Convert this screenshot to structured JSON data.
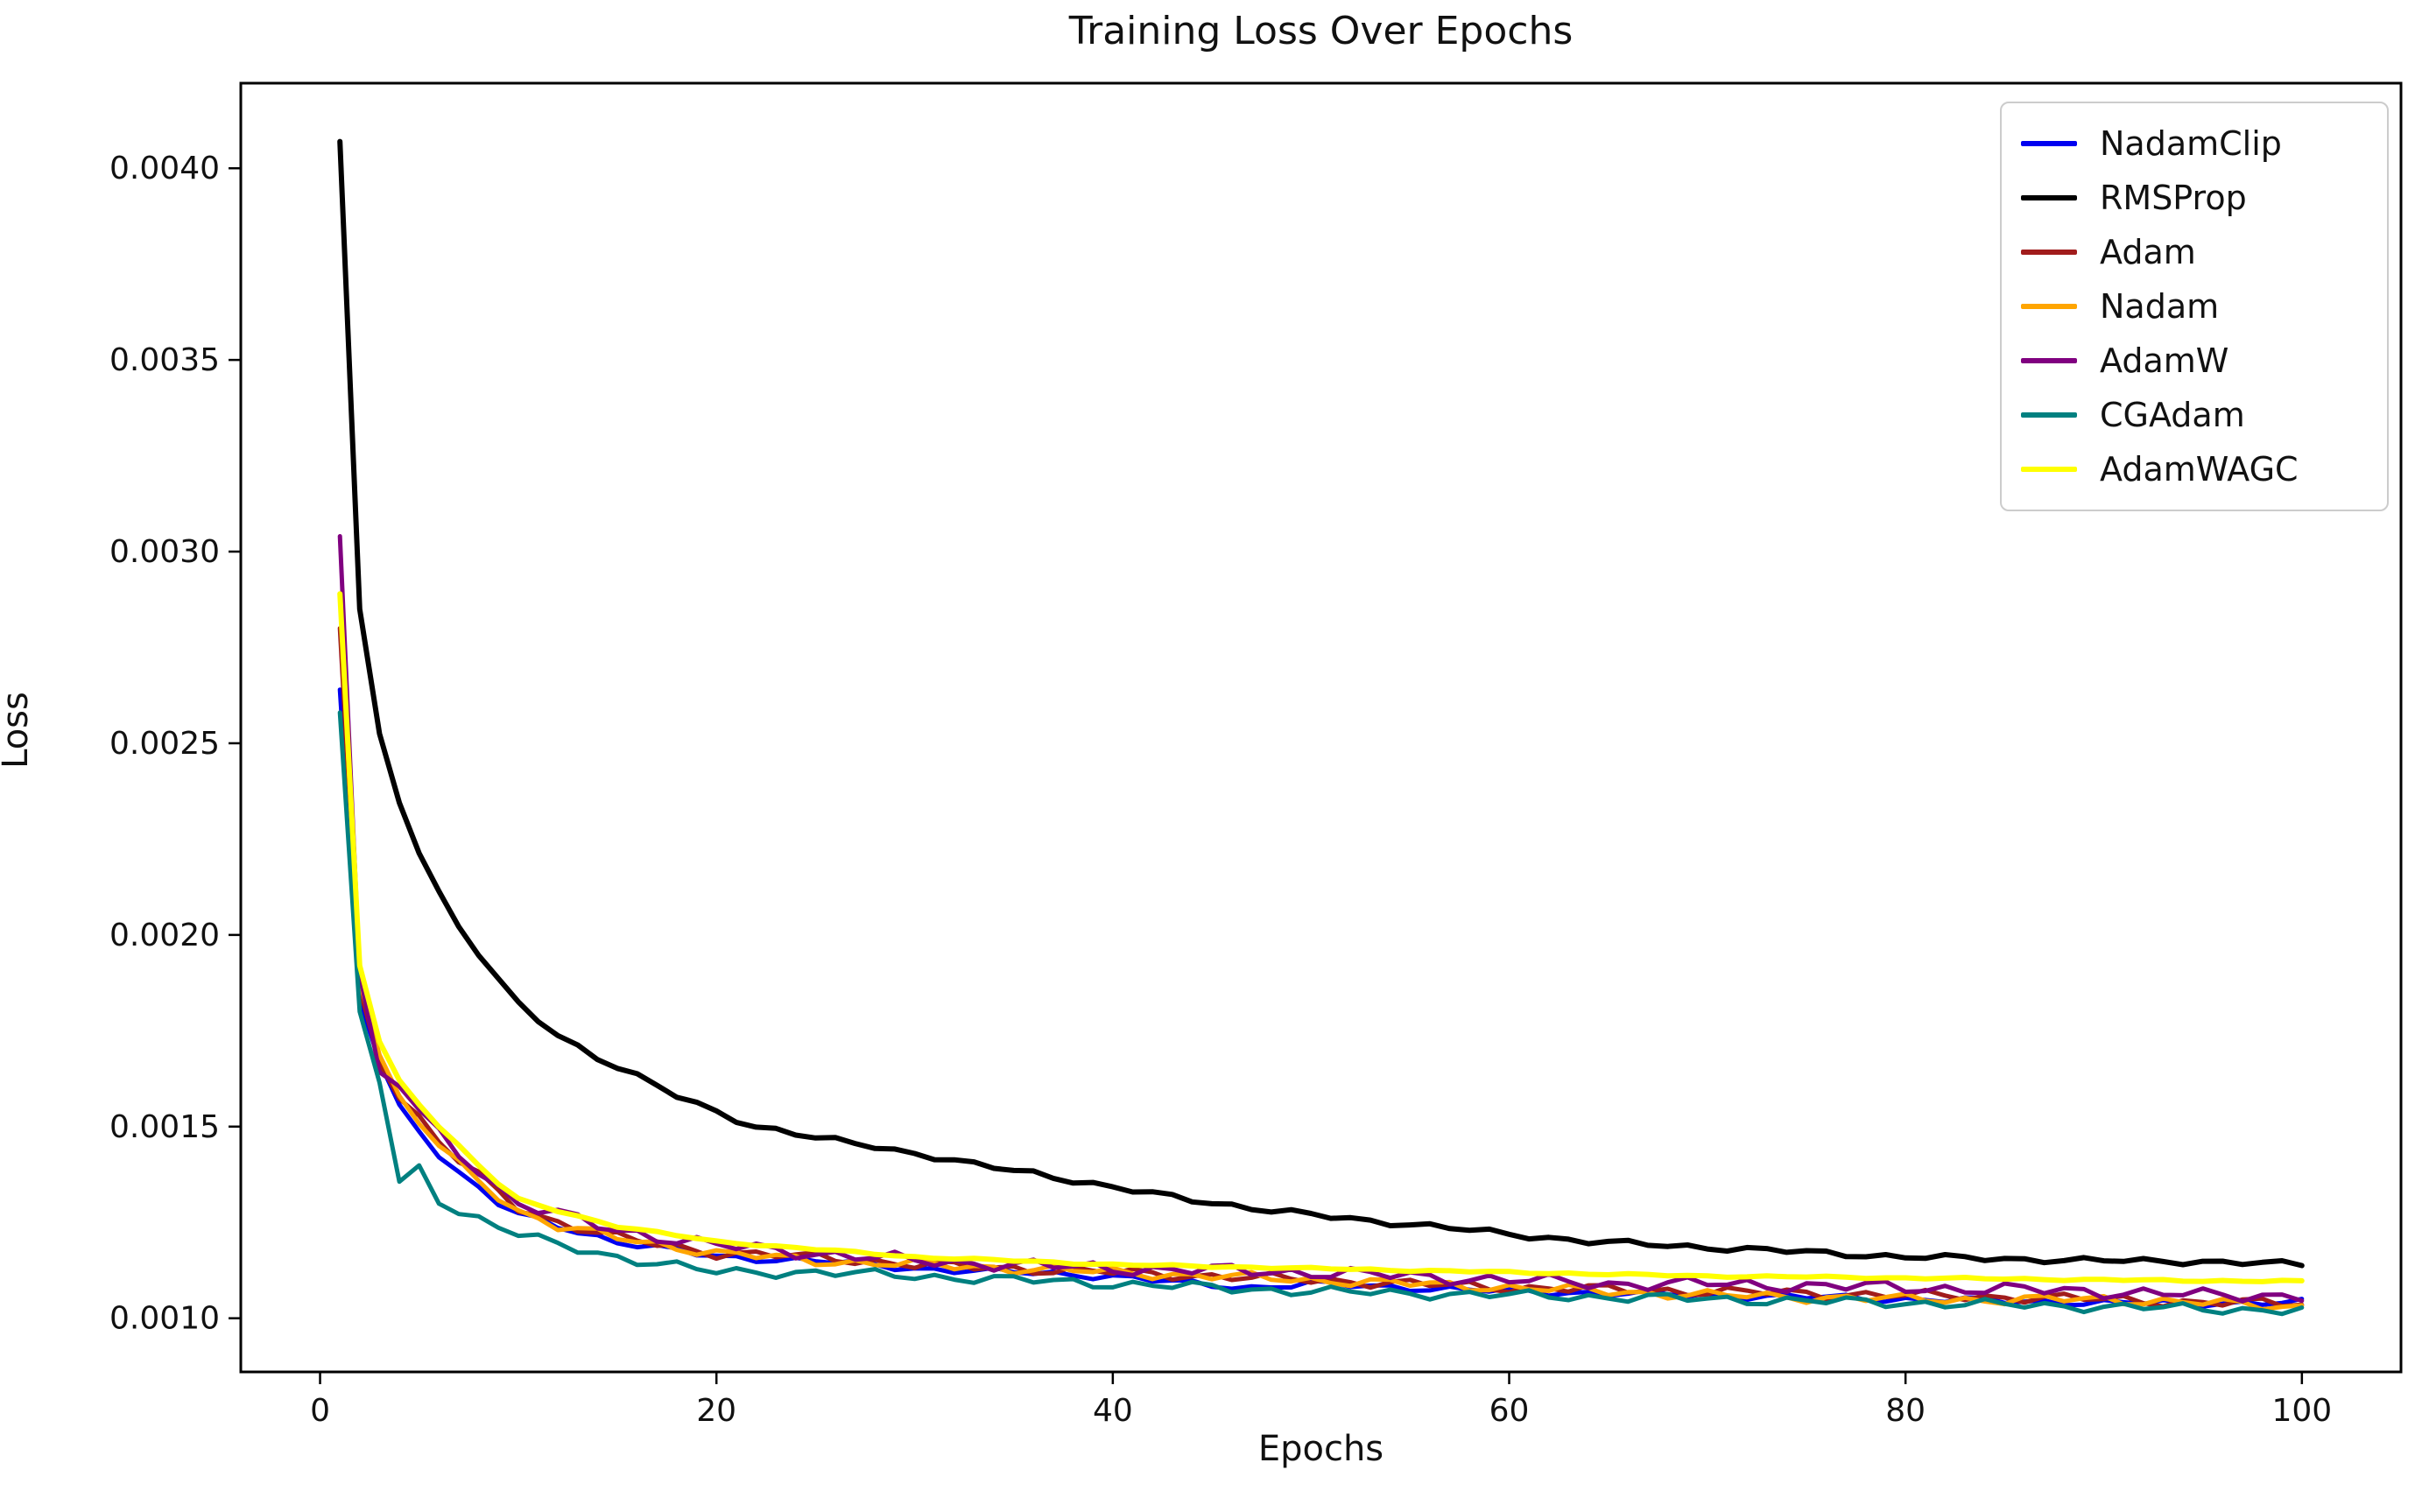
{
  "chart_data": {
    "type": "line",
    "title": "Training Loss Over Epochs",
    "xlabel": "Epochs",
    "ylabel": "Loss",
    "xlim": [
      -4,
      105
    ],
    "ylim": [
      0.00086,
      0.004222
    ],
    "grid": false,
    "legend_position": "upper right",
    "x_ticks": [
      {
        "value": 0,
        "label": "0"
      },
      {
        "value": 20,
        "label": "20"
      },
      {
        "value": 40,
        "label": "40"
      },
      {
        "value": 60,
        "label": "60"
      },
      {
        "value": 80,
        "label": "80"
      },
      {
        "value": 100,
        "label": "100"
      }
    ],
    "y_ticks": [
      {
        "value": 0.001,
        "label": "0.0010"
      },
      {
        "value": 0.0015,
        "label": "0.0015"
      },
      {
        "value": 0.002,
        "label": "0.0020"
      },
      {
        "value": 0.0025,
        "label": "0.0025"
      },
      {
        "value": 0.003,
        "label": "0.0030"
      },
      {
        "value": 0.0035,
        "label": "0.0035"
      },
      {
        "value": 0.004,
        "label": "0.0040"
      }
    ],
    "series": [
      {
        "name": "NadamClip",
        "color": "#0000f0",
        "linewidth": 5,
        "noise": 7e-06,
        "points": [
          [
            1,
            0.00264
          ],
          [
            2,
            0.00183
          ],
          [
            3,
            0.00167
          ],
          [
            4,
            0.00155
          ],
          [
            5,
            0.00149
          ],
          [
            6,
            0.00143
          ],
          [
            7,
            0.00138
          ],
          [
            8,
            0.00134
          ],
          [
            9,
            0.0013
          ],
          [
            10,
            0.00127
          ],
          [
            12,
            0.00124
          ],
          [
            15,
            0.0012
          ],
          [
            20,
            0.00116
          ],
          [
            25,
            0.00115
          ],
          [
            30,
            0.00113
          ],
          [
            35,
            0.00112
          ],
          [
            40,
            0.00111
          ],
          [
            44,
            0.00109
          ],
          [
            47,
            0.00108
          ],
          [
            50,
            0.00109
          ],
          [
            55,
            0.00108
          ],
          [
            60,
            0.00107
          ],
          [
            65,
            0.001065
          ],
          [
            70,
            0.00106
          ],
          [
            75,
            0.001055
          ],
          [
            80,
            0.00105
          ],
          [
            85,
            0.001045
          ],
          [
            90,
            0.00104
          ],
          [
            95,
            0.00104
          ],
          [
            100,
            0.00104
          ]
        ]
      },
      {
        "name": "RMSProp",
        "color": "#000000",
        "linewidth": 6,
        "noise": 6e-06,
        "points": [
          [
            1,
            0.00407
          ],
          [
            2,
            0.00285
          ],
          [
            3,
            0.00252
          ],
          [
            4,
            0.00235
          ],
          [
            5,
            0.00222
          ],
          [
            6,
            0.00211
          ],
          [
            7,
            0.00202
          ],
          [
            8,
            0.00195
          ],
          [
            9,
            0.00188
          ],
          [
            10,
            0.00182
          ],
          [
            12,
            0.00174
          ],
          [
            14,
            0.00168
          ],
          [
            16,
            0.00163
          ],
          [
            18,
            0.00158
          ],
          [
            20,
            0.00154
          ],
          [
            22,
            0.0015
          ],
          [
            25,
            0.00147
          ],
          [
            28,
            0.00145
          ],
          [
            30,
            0.00143
          ],
          [
            33,
            0.0014
          ],
          [
            36,
            0.00138
          ],
          [
            40,
            0.00134
          ],
          [
            44,
            0.00131
          ],
          [
            48,
            0.00128
          ],
          [
            52,
            0.00126
          ],
          [
            56,
            0.00124
          ],
          [
            60,
            0.00122
          ],
          [
            64,
            0.0012
          ],
          [
            68,
            0.00119
          ],
          [
            72,
            0.00118
          ],
          [
            76,
            0.00117
          ],
          [
            80,
            0.00116
          ],
          [
            85,
            0.001155
          ],
          [
            90,
            0.00115
          ],
          [
            95,
            0.001148
          ],
          [
            100,
            0.00114
          ]
        ]
      },
      {
        "name": "Adam",
        "color": "#a11c1c",
        "linewidth": 5,
        "noise": 1e-05,
        "points": [
          [
            1,
            0.0028
          ],
          [
            2,
            0.00186
          ],
          [
            3,
            0.00168
          ],
          [
            4,
            0.00158
          ],
          [
            5,
            0.00152
          ],
          [
            6,
            0.00146
          ],
          [
            7,
            0.00141
          ],
          [
            8,
            0.00137
          ],
          [
            9,
            0.00133
          ],
          [
            10,
            0.00129
          ],
          [
            12,
            0.00125
          ],
          [
            15,
            0.00121
          ],
          [
            20,
            0.00117
          ],
          [
            25,
            0.00116
          ],
          [
            30,
            0.00114
          ],
          [
            35,
            0.00113
          ],
          [
            40,
            0.00112
          ],
          [
            45,
            0.00111
          ],
          [
            50,
            0.0011
          ],
          [
            55,
            0.00109
          ],
          [
            60,
            0.00108
          ],
          [
            65,
            0.001075
          ],
          [
            70,
            0.00107
          ],
          [
            75,
            0.001065
          ],
          [
            80,
            0.00106
          ],
          [
            85,
            0.001055
          ],
          [
            90,
            0.00105
          ],
          [
            95,
            0.00104
          ],
          [
            100,
            0.00104
          ]
        ]
      },
      {
        "name": "Nadam",
        "color": "#ffa500",
        "linewidth": 5,
        "noise": 1e-05,
        "points": [
          [
            1,
            0.00289
          ],
          [
            2,
            0.00188
          ],
          [
            3,
            0.00169
          ],
          [
            4,
            0.00157
          ],
          [
            5,
            0.00151
          ],
          [
            6,
            0.00145
          ],
          [
            7,
            0.0014
          ],
          [
            8,
            0.00136
          ],
          [
            9,
            0.00132
          ],
          [
            10,
            0.00128
          ],
          [
            12,
            0.00124
          ],
          [
            15,
            0.00121
          ],
          [
            20,
            0.00117
          ],
          [
            25,
            0.00115
          ],
          [
            30,
            0.00114
          ],
          [
            35,
            0.00113
          ],
          [
            40,
            0.00112
          ],
          [
            45,
            0.00111
          ],
          [
            50,
            0.0011
          ],
          [
            55,
            0.00109
          ],
          [
            60,
            0.00108
          ],
          [
            65,
            0.00107
          ],
          [
            70,
            0.00106
          ],
          [
            75,
            0.001055
          ],
          [
            80,
            0.00105
          ],
          [
            85,
            0.001048
          ],
          [
            90,
            0.00105
          ],
          [
            95,
            0.00104
          ],
          [
            100,
            0.00103
          ]
        ]
      },
      {
        "name": "AdamW",
        "color": "#800080",
        "linewidth": 5,
        "noise": 1.3e-05,
        "points": [
          [
            1,
            0.00304
          ],
          [
            2,
            0.0019
          ],
          [
            3,
            0.00163
          ],
          [
            4,
            0.00161
          ],
          [
            5,
            0.00154
          ],
          [
            6,
            0.00148
          ],
          [
            7,
            0.00143
          ],
          [
            8,
            0.00139
          ],
          [
            9,
            0.00134
          ],
          [
            10,
            0.0013
          ],
          [
            12,
            0.00127
          ],
          [
            15,
            0.00123
          ],
          [
            20,
            0.00119
          ],
          [
            25,
            0.00117
          ],
          [
            30,
            0.00115
          ],
          [
            35,
            0.00114
          ],
          [
            40,
            0.00113
          ],
          [
            45,
            0.001125
          ],
          [
            50,
            0.00112
          ],
          [
            55,
            0.00111
          ],
          [
            60,
            0.0011
          ],
          [
            65,
            0.00109
          ],
          [
            70,
            0.00109
          ],
          [
            75,
            0.001085
          ],
          [
            80,
            0.00108
          ],
          [
            85,
            0.001075
          ],
          [
            90,
            0.00107
          ],
          [
            95,
            0.00106
          ],
          [
            100,
            0.00106
          ]
        ]
      },
      {
        "name": "CGAdam",
        "color": "#008080",
        "linewidth": 5,
        "noise": 1e-05,
        "points": [
          [
            1,
            0.00258
          ],
          [
            2,
            0.0018
          ],
          [
            3,
            0.00162
          ],
          [
            4,
            0.00135
          ],
          [
            5,
            0.00139
          ],
          [
            6,
            0.00131
          ],
          [
            7,
            0.00128
          ],
          [
            8,
            0.00126
          ],
          [
            9,
            0.00124
          ],
          [
            10,
            0.00122
          ],
          [
            12,
            0.00119
          ],
          [
            15,
            0.00116
          ],
          [
            20,
            0.00112
          ],
          [
            25,
            0.00112
          ],
          [
            30,
            0.00111
          ],
          [
            35,
            0.0011
          ],
          [
            40,
            0.00109
          ],
          [
            45,
            0.00108
          ],
          [
            50,
            0.00107
          ],
          [
            55,
            0.001065
          ],
          [
            60,
            0.00106
          ],
          [
            65,
            0.001055
          ],
          [
            70,
            0.00105
          ],
          [
            75,
            0.001045
          ],
          [
            80,
            0.00104
          ],
          [
            85,
            0.001035
          ],
          [
            90,
            0.00103
          ],
          [
            95,
            0.001025
          ],
          [
            100,
            0.00102
          ]
        ]
      },
      {
        "name": "AdamWAGC",
        "color": "#ffff00",
        "linewidth": 6,
        "noise": 2e-06,
        "points": [
          [
            1,
            0.00289
          ],
          [
            2,
            0.00192
          ],
          [
            3,
            0.00172
          ],
          [
            4,
            0.00162
          ],
          [
            5,
            0.00156
          ],
          [
            6,
            0.0015
          ],
          [
            7,
            0.00145
          ],
          [
            8,
            0.0014
          ],
          [
            9,
            0.00135
          ],
          [
            10,
            0.00131
          ],
          [
            12,
            0.00128
          ],
          [
            15,
            0.00124
          ],
          [
            20,
            0.0012
          ],
          [
            25,
            0.00118
          ],
          [
            30,
            0.00116
          ],
          [
            35,
            0.00115
          ],
          [
            40,
            0.00114
          ],
          [
            45,
            0.001135
          ],
          [
            50,
            0.00113
          ],
          [
            55,
            0.001125
          ],
          [
            60,
            0.00112
          ],
          [
            65,
            0.001115
          ],
          [
            70,
            0.00111
          ],
          [
            75,
            0.001108
          ],
          [
            80,
            0.001105
          ],
          [
            85,
            0.001103
          ],
          [
            90,
            0.0011
          ],
          [
            95,
            0.001098
          ],
          [
            100,
            0.001096
          ]
        ]
      }
    ]
  }
}
